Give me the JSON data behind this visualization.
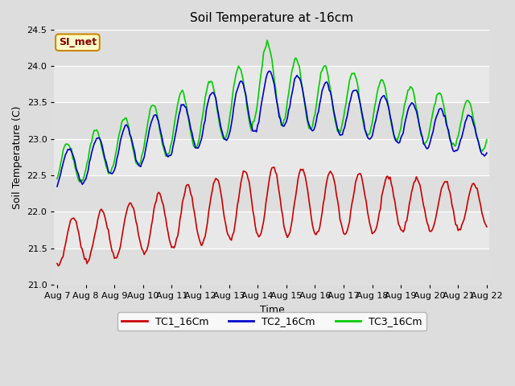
{
  "title": "Soil Temperature at -16cm",
  "xlabel": "Time",
  "ylabel": "Soil Temperature (C)",
  "ylim": [
    21.0,
    24.5
  ],
  "bg_color": "#dddddd",
  "plot_bg_color": "#e8e8e8",
  "grid_color": "white",
  "tc1_color": "#cc0000",
  "tc2_color": "#0000cc",
  "tc3_color": "#00cc00",
  "annotation_text": "SI_met",
  "annotation_bg": "#ffffcc",
  "annotation_border": "#cc8800",
  "x_tick_labels": [
    "Aug 7",
    "Aug 8",
    "Aug 9",
    "Aug 10",
    "Aug 11",
    "Aug 12",
    "Aug 13",
    "Aug 14",
    "Aug 15",
    "Aug 16",
    "Aug 17",
    "Aug 18",
    "Aug 19",
    "Aug 20",
    "Aug 21",
    "Aug 22"
  ],
  "yticks": [
    21.0,
    21.5,
    22.0,
    22.5,
    23.0,
    23.5,
    24.0,
    24.5
  ]
}
